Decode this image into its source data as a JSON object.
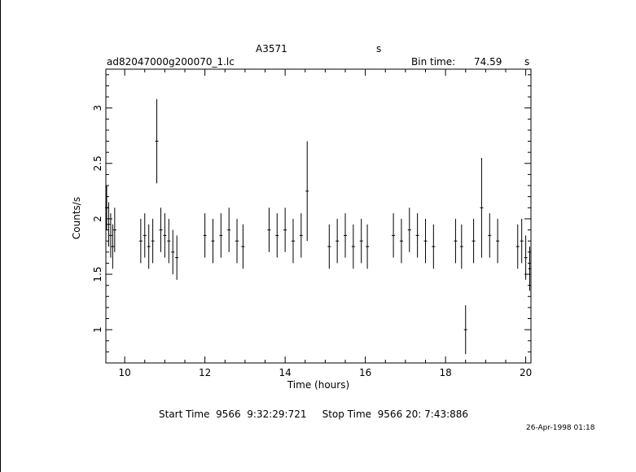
{
  "header": {
    "object": "A3571",
    "object_unit": "s",
    "filename": "ad82047000g200070_1.lc",
    "bin_time_label": "Bin time:",
    "bin_time_value": "74.59",
    "bin_time_unit": "s"
  },
  "footer": {
    "start_stop": "Start Time  9566  9:32:29:721     Stop Time  9566 20: 7:43:886",
    "date_stamp": "26-Apr-1998 01:18"
  },
  "chart_data": {
    "type": "scatter",
    "title": "A3571",
    "xlabel": "Time (hours)",
    "ylabel": "Counts/s",
    "xlim": [
      9.53,
      20.13
    ],
    "ylim": [
      0.7,
      3.35
    ],
    "x_ticks": [
      10,
      12,
      14,
      16,
      18,
      20
    ],
    "y_ticks": [
      1,
      1.5,
      2,
      2.5,
      3
    ],
    "y_tick_labels": [
      "1",
      "1.5",
      "2",
      "2.5",
      "3"
    ],
    "grid": false,
    "legend": "none",
    "series": [
      {
        "segments": [
          {
            "x": [
              9.55,
              9.6,
              9.65,
              9.7,
              9.75
            ],
            "y": [
              2.1,
              1.95,
              1.85,
              1.75,
              1.9
            ],
            "err": [
              0.2,
              0.2,
              0.2,
              0.2,
              0.2
            ]
          },
          {
            "x": [
              10.4,
              10.5,
              10.6,
              10.7,
              10.8,
              10.9,
              11.0,
              11.1,
              11.2,
              11.3
            ],
            "y": [
              1.8,
              1.85,
              1.75,
              1.8,
              2.7,
              1.9,
              1.85,
              1.8,
              1.7,
              1.65
            ],
            "err": [
              0.2,
              0.2,
              0.2,
              0.2,
              0.38,
              0.2,
              0.2,
              0.2,
              0.2,
              0.2
            ]
          },
          {
            "x": [
              12.0,
              12.2,
              12.4,
              12.6,
              12.8,
              12.95
            ],
            "y": [
              1.85,
              1.8,
              1.85,
              1.9,
              1.8,
              1.75
            ],
            "err": [
              0.2,
              0.2,
              0.2,
              0.2,
              0.2,
              0.2
            ]
          },
          {
            "x": [
              13.6,
              13.8,
              14.0,
              14.2,
              14.4,
              14.55
            ],
            "y": [
              1.9,
              1.85,
              1.9,
              1.8,
              1.85,
              2.25
            ],
            "err": [
              0.2,
              0.2,
              0.2,
              0.2,
              0.2,
              0.45
            ]
          },
          {
            "x": [
              15.1,
              15.3,
              15.5,
              15.7,
              15.9,
              16.05
            ],
            "y": [
              1.75,
              1.8,
              1.85,
              1.75,
              1.8,
              1.75
            ],
            "err": [
              0.2,
              0.2,
              0.2,
              0.2,
              0.2,
              0.2
            ]
          },
          {
            "x": [
              16.7,
              16.9,
              17.1,
              17.3,
              17.5,
              17.7
            ],
            "y": [
              1.85,
              1.8,
              1.9,
              1.85,
              1.8,
              1.75
            ],
            "err": [
              0.2,
              0.2,
              0.2,
              0.2,
              0.2,
              0.2
            ]
          },
          {
            "x": [
              18.25,
              18.4,
              18.5,
              18.7,
              18.9,
              19.1,
              19.3
            ],
            "y": [
              1.8,
              1.75,
              1.0,
              1.8,
              2.1,
              1.85,
              1.8
            ],
            "err": [
              0.2,
              0.2,
              0.22,
              0.2,
              0.45,
              0.2,
              0.2
            ]
          },
          {
            "x": [
              19.8,
              19.9,
              20.0,
              20.1
            ],
            "y": [
              1.75,
              1.8,
              1.65,
              1.55
            ],
            "err": [
              0.2,
              0.2,
              0.2,
              0.2
            ]
          }
        ]
      }
    ]
  }
}
